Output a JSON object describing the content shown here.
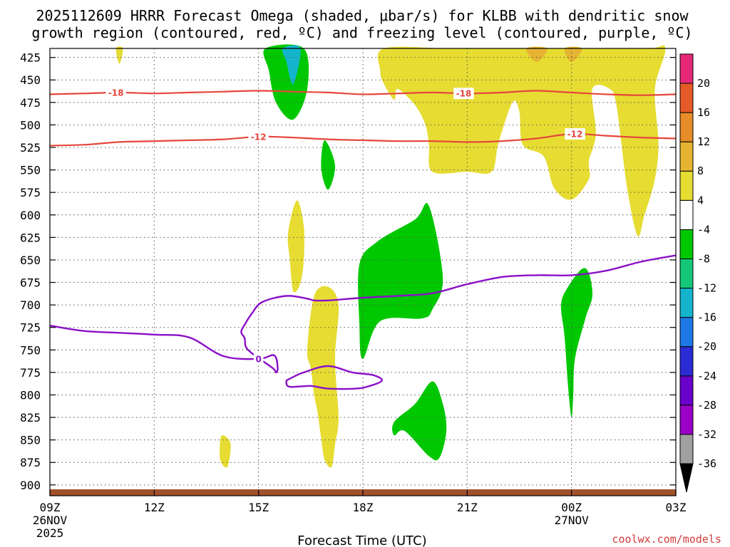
{
  "chart_data": {
    "type": "time-height cross section",
    "title_line1": "2025112609 HRRR Forecast Omega (shaded, μbar/s) for KLBB with dendritic snow",
    "title_line2": "growth region (contoured, red, ºC) and freezing level (contoured, purple, ºC)",
    "xlabel": "Forecast Time (UTC)",
    "credit": "coolwx.com/models",
    "xlim": [
      9,
      27
    ],
    "ylim": [
      912,
      415
    ],
    "x_ticks": [
      {
        "value": 9,
        "label": "09Z",
        "sub1": "26NOV",
        "sub2": "2025"
      },
      {
        "value": 12,
        "label": "12Z",
        "sub1": "",
        "sub2": ""
      },
      {
        "value": 15,
        "label": "15Z",
        "sub1": "",
        "sub2": ""
      },
      {
        "value": 18,
        "label": "18Z",
        "sub1": "",
        "sub2": ""
      },
      {
        "value": 21,
        "label": "21Z",
        "sub1": "",
        "sub2": ""
      },
      {
        "value": 24,
        "label": "00Z",
        "sub1": "27NOV",
        "sub2": ""
      },
      {
        "value": 27,
        "label": "03Z",
        "sub1": "",
        "sub2": ""
      }
    ],
    "y_ticks": [
      "425",
      "450",
      "475",
      "500",
      "525",
      "550",
      "575",
      "600",
      "625",
      "650",
      "675",
      "700",
      "725",
      "750",
      "775",
      "800",
      "825",
      "850",
      "875",
      "900"
    ],
    "colorbar": {
      "colors": [
        "#000000",
        "#a0a0a0",
        "#9b00c8",
        "#6a00cc",
        "#2b2bd6",
        "#1e78e6",
        "#14b4cc",
        "#14c878",
        "#00c800",
        "#ffffff",
        "#e6dc32",
        "#e6b432",
        "#e68c28",
        "#e65a28",
        "#e62878",
        "#e6006e"
      ],
      "labels": [
        "-36",
        "-32",
        "-28",
        "-24",
        "-20",
        "-16",
        "-12",
        "-8",
        "-4",
        "4",
        "8",
        "12",
        "16",
        "20"
      ]
    },
    "omega_regions": [
      {
        "level": "-4",
        "color": "#00c800",
        "points": [
          [
            15.2,
            415
          ],
          [
            16.3,
            415
          ],
          [
            16.4,
            460
          ],
          [
            16.0,
            494
          ],
          [
            15.5,
            475
          ],
          [
            15.3,
            440
          ]
        ]
      },
      {
        "level": "-12",
        "color": "#14b4cc",
        "points": [
          [
            15.7,
            415
          ],
          [
            16.2,
            415
          ],
          [
            16.0,
            455
          ],
          [
            15.8,
            430
          ]
        ]
      },
      {
        "level": "-4",
        "color": "#00c800",
        "points": [
          [
            16.9,
            517
          ],
          [
            17.2,
            545
          ],
          [
            17.0,
            572
          ],
          [
            16.8,
            548
          ]
        ]
      },
      {
        "level": "-4",
        "color": "#00c800",
        "points": [
          [
            17.9,
            655
          ],
          [
            18.4,
            630
          ],
          [
            19.5,
            605
          ],
          [
            19.9,
            590
          ],
          [
            20.3,
            670
          ],
          [
            20.0,
            705
          ],
          [
            19.7,
            715
          ],
          [
            18.5,
            718
          ],
          [
            18.0,
            760
          ],
          [
            17.9,
            720
          ]
        ]
      },
      {
        "level": "-4",
        "color": "#00c800",
        "points": [
          [
            18.9,
            830
          ],
          [
            19.5,
            810
          ],
          [
            20.0,
            785
          ],
          [
            20.3,
            810
          ],
          [
            20.4,
            840
          ],
          [
            20.2,
            870
          ],
          [
            19.9,
            868
          ],
          [
            19.2,
            840
          ],
          [
            18.9,
            845
          ]
        ]
      },
      {
        "level": "-4",
        "color": "#00c800",
        "points": [
          [
            23.9,
            680
          ],
          [
            24.3,
            660
          ],
          [
            24.5,
            665
          ],
          [
            24.6,
            690
          ],
          [
            24.4,
            715
          ],
          [
            24.1,
            760
          ],
          [
            24.05,
            800
          ],
          [
            24.0,
            825
          ],
          [
            23.9,
            790
          ],
          [
            23.8,
            735
          ],
          [
            23.7,
            700
          ]
        ]
      },
      {
        "level": "4",
        "color": "#e6dc32",
        "points": [
          [
            10.9,
            415
          ],
          [
            11.1,
            415
          ],
          [
            11.0,
            432
          ]
        ]
      },
      {
        "level": "4",
        "color": "#e6dc32",
        "points": [
          [
            18.6,
            415
          ],
          [
            20.4,
            415
          ],
          [
            21.3,
            415
          ],
          [
            23.9,
            415
          ],
          [
            24.4,
            415
          ],
          [
            26.2,
            415
          ],
          [
            26.7,
            415
          ],
          [
            26.4,
            460
          ],
          [
            26.5,
            520
          ],
          [
            26.4,
            560
          ],
          [
            26.1,
            600
          ],
          [
            25.9,
            623
          ],
          [
            25.6,
            570
          ],
          [
            25.3,
            480
          ],
          [
            25.1,
            460
          ],
          [
            24.6,
            460
          ],
          [
            24.7,
            510
          ],
          [
            24.5,
            540
          ],
          [
            24.5,
            560
          ],
          [
            24.0,
            583
          ],
          [
            23.5,
            570
          ],
          [
            23.2,
            535
          ],
          [
            22.6,
            522
          ],
          [
            22.5,
            485
          ],
          [
            22.3,
            475
          ],
          [
            21.9,
            520
          ],
          [
            21.7,
            552
          ],
          [
            21.0,
            552
          ],
          [
            20.0,
            552
          ],
          [
            19.9,
            522
          ],
          [
            19.8,
            500
          ],
          [
            19.5,
            478
          ],
          [
            19.0,
            460
          ],
          [
            18.9,
            472
          ],
          [
            18.6,
            454
          ],
          [
            18.5,
            440
          ]
        ]
      },
      {
        "level": "8",
        "color": "#e6b432",
        "points": [
          [
            22.7,
            415
          ],
          [
            23.3,
            415
          ],
          [
            23.0,
            430
          ]
        ]
      },
      {
        "level": "8",
        "color": "#e6b432",
        "points": [
          [
            23.8,
            415
          ],
          [
            24.3,
            415
          ],
          [
            24.0,
            430
          ]
        ]
      },
      {
        "level": "4",
        "color": "#e6dc32",
        "points": [
          [
            15.85,
            620
          ],
          [
            16.1,
            584
          ],
          [
            16.3,
            612
          ],
          [
            16.3,
            650
          ],
          [
            16.2,
            676
          ],
          [
            16.0,
            685
          ],
          [
            15.9,
            650
          ]
        ]
      },
      {
        "level": "4",
        "color": "#e6dc32",
        "points": [
          [
            16.6,
            690
          ],
          [
            17.0,
            680
          ],
          [
            17.3,
            700
          ],
          [
            17.2,
            760
          ],
          [
            17.3,
            825
          ],
          [
            17.2,
            855
          ],
          [
            17.1,
            880
          ],
          [
            16.9,
            872
          ],
          [
            16.8,
            848
          ],
          [
            16.7,
            820
          ],
          [
            16.6,
            800
          ],
          [
            16.5,
            770
          ],
          [
            16.4,
            750
          ]
        ]
      },
      {
        "level": "4",
        "color": "#e6dc32",
        "points": [
          [
            13.9,
            850
          ],
          [
            14.0,
            845
          ],
          [
            14.2,
            855
          ],
          [
            14.1,
            880
          ],
          [
            13.9,
            872
          ]
        ]
      }
    ],
    "dgz_contours": [
      {
        "label": "-18",
        "color": "#e6463c",
        "points": [
          [
            9,
            466
          ],
          [
            10,
            465
          ],
          [
            11,
            464
          ],
          [
            12,
            465
          ],
          [
            13,
            464
          ],
          [
            14,
            463
          ],
          [
            15,
            462
          ],
          [
            16,
            463
          ],
          [
            17,
            464
          ],
          [
            18,
            466
          ],
          [
            19,
            465
          ],
          [
            20,
            464
          ],
          [
            21,
            465
          ],
          [
            22,
            464
          ],
          [
            23,
            462
          ],
          [
            24,
            464
          ],
          [
            25,
            466
          ],
          [
            26,
            467
          ],
          [
            27,
            466
          ]
        ]
      },
      {
        "label": "-12",
        "color": "#e6463c",
        "points": [
          [
            9,
            523
          ],
          [
            10,
            522
          ],
          [
            11,
            519
          ],
          [
            12,
            518
          ],
          [
            13,
            517
          ],
          [
            14,
            516
          ],
          [
            15,
            513
          ],
          [
            16,
            514
          ],
          [
            17,
            516
          ],
          [
            18,
            517
          ],
          [
            19,
            518
          ],
          [
            20,
            518
          ],
          [
            21,
            519
          ],
          [
            22,
            518
          ],
          [
            23,
            515
          ],
          [
            24,
            510
          ],
          [
            25,
            512
          ],
          [
            26,
            514
          ],
          [
            27,
            515
          ]
        ]
      }
    ],
    "freezing_level": {
      "label": "0",
      "color": "#8a10c8",
      "points": [
        [
          9,
          723
        ],
        [
          10,
          729
        ],
        [
          11,
          731
        ],
        [
          12,
          733
        ],
        [
          13,
          736
        ],
        [
          14,
          757
        ],
        [
          15,
          760
        ],
        [
          15.45,
          756
        ],
        [
          15.55,
          770
        ],
        [
          15.5,
          775
        ],
        [
          15.4,
          770
        ],
        [
          14.7,
          750
        ],
        [
          14.6,
          737
        ],
        [
          14.5,
          730
        ],
        [
          14.6,
          722
        ],
        [
          14.8,
          710
        ],
        [
          15.1,
          697
        ],
        [
          15.8,
          690
        ],
        [
          16.4,
          693
        ],
        [
          16.6,
          695
        ],
        [
          17,
          695
        ],
        [
          18,
          692
        ],
        [
          19,
          690
        ],
        [
          20,
          687
        ],
        [
          21,
          677
        ],
        [
          22,
          669
        ],
        [
          23,
          667
        ],
        [
          24,
          667
        ],
        [
          25,
          662
        ],
        [
          26,
          652
        ],
        [
          27,
          645
        ]
      ],
      "points2": [
        [
          15.9,
          782
        ],
        [
          16.3,
          775
        ],
        [
          17.0,
          768
        ],
        [
          17.7,
          775
        ],
        [
          18.3,
          778
        ],
        [
          18.55,
          784
        ],
        [
          18.2,
          790
        ],
        [
          17.8,
          793
        ],
        [
          17.0,
          793
        ],
        [
          16.5,
          790
        ],
        [
          15.9,
          791
        ],
        [
          15.8,
          785
        ]
      ]
    }
  }
}
